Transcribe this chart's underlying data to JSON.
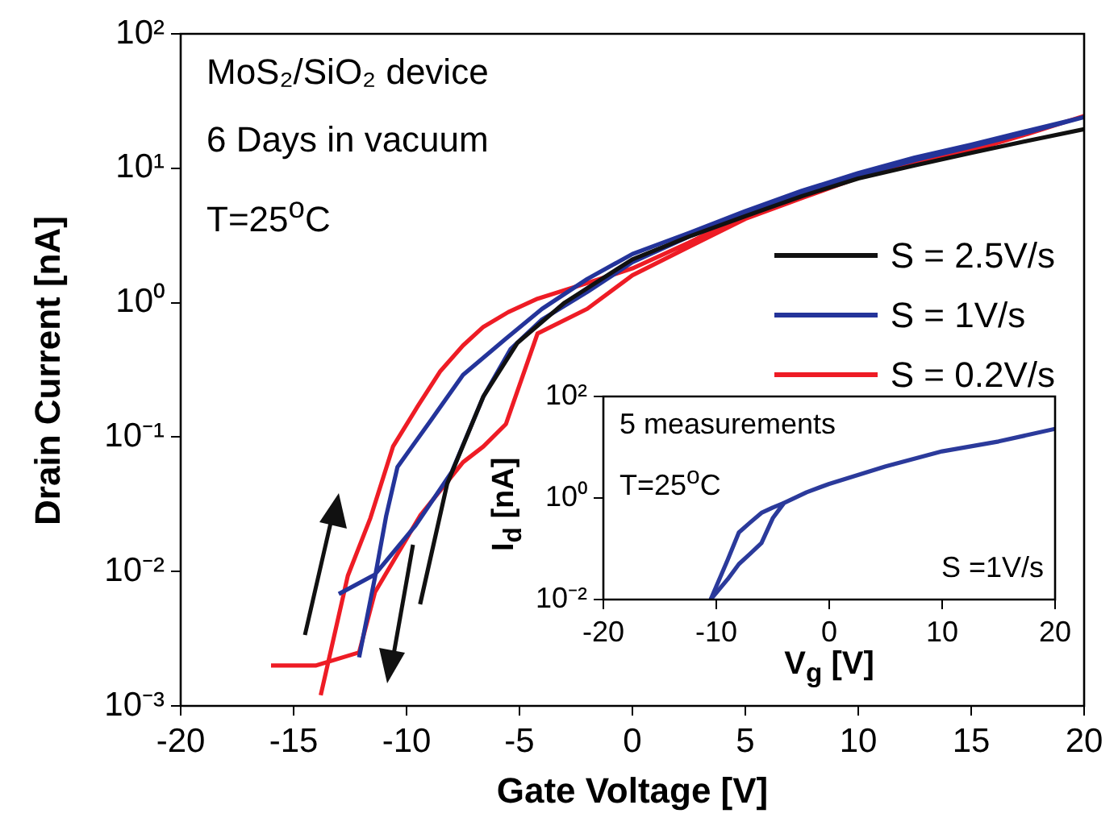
{
  "chart_data": [
    {
      "type": "line",
      "xlabel": "Gate Voltage [V]",
      "ylabel": "Drain Current [nA]",
      "log": "y",
      "grid": false,
      "legend": "right",
      "xlim": [
        -20,
        20
      ],
      "xticks": [
        -20,
        -15,
        -10,
        -5,
        0,
        5,
        10,
        15,
        20
      ],
      "ylim": [
        0.001,
        100
      ],
      "yticks": [
        {
          "value": 0.001,
          "label": "10⁻³"
        },
        {
          "value": 0.01,
          "label": "10⁻²"
        },
        {
          "value": 0.1,
          "label": "10⁻¹"
        },
        {
          "value": 1,
          "label": "10⁰"
        },
        {
          "value": 10,
          "label": "10¹"
        },
        {
          "value": 100,
          "label": "10²"
        }
      ],
      "annotations": [
        "MoS₂/SiO₂ device",
        "6 Days in vacuum",
        "T=25$^{o}$C"
      ],
      "series": [
        {
          "name": "S = 2.5V/s",
          "color": "#111111",
          "x": [
            -9.4,
            -8.2,
            -6.6,
            -5.1,
            -3,
            0,
            2.5,
            5,
            7.5,
            10,
            12.5,
            15,
            17.5,
            20
          ],
          "values": [
            0.0057,
            0.045,
            0.2,
            0.5,
            1.0,
            2.1,
            3.1,
            4.4,
            6.2,
            8.4,
            10.5,
            13,
            16,
            19.5
          ]
        },
        {
          "name": "S = 1V/s",
          "color": "#24349a",
          "x": [
            -12.1,
            -11.4,
            -10.9,
            -10.4,
            -8.9,
            -7.5,
            -5.6,
            -4,
            -2,
            0,
            2.5,
            5,
            7.5,
            10,
            12.5,
            15,
            17.5,
            20,
            17.5,
            15,
            12.5,
            10,
            7.5,
            5,
            2.5,
            0,
            -2,
            -4,
            -5.4,
            -6.6,
            -8,
            -9.6,
            -11.4,
            -13
          ],
          "values": [
            0.0023,
            0.009,
            0.026,
            0.06,
            0.135,
            0.29,
            0.54,
            0.9,
            1.5,
            2.3,
            3.3,
            4.8,
            6.8,
            9.2,
            12,
            15,
            19,
            24,
            18.5,
            14.5,
            11.5,
            8.8,
            6.4,
            4.5,
            3.1,
            2,
            1.2,
            0.75,
            0.45,
            0.2,
            0.055,
            0.022,
            0.0095,
            0.0068
          ]
        },
        {
          "name": "S = 0.2V/s",
          "color": "#ee1c25",
          "x": [
            -13.8,
            -12.6,
            -11.6,
            -10.6,
            -9.5,
            -8.5,
            -7.5,
            -6.6,
            -5.5,
            -4.2,
            -2,
            0,
            2.5,
            5,
            7.5,
            10,
            12.5,
            15,
            17.5,
            20,
            17.5,
            15,
            12.5,
            10,
            7.5,
            5,
            2.5,
            0,
            -2,
            -4.2,
            -5.6,
            -6.6,
            -7.5,
            -9.4,
            -11.4,
            -12.1,
            -14,
            -16
          ],
          "values": [
            0.0012,
            0.0093,
            0.025,
            0.085,
            0.17,
            0.31,
            0.48,
            0.66,
            0.85,
            1.07,
            1.4,
            1.8,
            2.8,
            4.5,
            6.5,
            9.1,
            11.5,
            14,
            18,
            24.5,
            18,
            13.5,
            11,
            8.5,
            6,
            4.2,
            2.6,
            1.6,
            0.9,
            0.59,
            0.125,
            0.085,
            0.065,
            0.026,
            0.007,
            0.0025,
            0.002,
            0.002
          ]
        }
      ]
    },
    {
      "type": "line",
      "xlabel": "V$_{g}$ [V]",
      "ylabel": "I$_{d}$ [nA]",
      "log": "y",
      "grid": false,
      "xlim": [
        -20,
        20
      ],
      "xticks": [
        -20,
        -10,
        0,
        10,
        20
      ],
      "ylim": [
        0.01,
        100
      ],
      "yticks": [
        {
          "value": 0.01,
          "label": "10⁻²"
        },
        {
          "value": 1,
          "label": "10⁰"
        },
        {
          "value": 100,
          "label": "10²"
        }
      ],
      "annotations": [
        "5 measurements",
        "T=25$^{o}$C",
        "S =1V/s"
      ],
      "series": [
        {
          "color": "#2b3a9b",
          "x": [
            -10.5,
            -9,
            -8,
            -7,
            -6,
            -5,
            -4,
            -2,
            0,
            5,
            10,
            15,
            20
          ],
          "values": [
            0.01,
            0.025,
            0.05,
            0.08,
            0.13,
            0.4,
            0.8,
            1.3,
            1.9,
            4.2,
            8.3,
            13,
            23
          ]
        },
        {
          "color": "#2b3a9b",
          "x": [
            -10.5,
            -9,
            -8,
            -7,
            -6,
            -5,
            -4
          ],
          "values": [
            0.01,
            0.06,
            0.21,
            0.33,
            0.51,
            0.65,
            0.8
          ]
        }
      ]
    }
  ]
}
